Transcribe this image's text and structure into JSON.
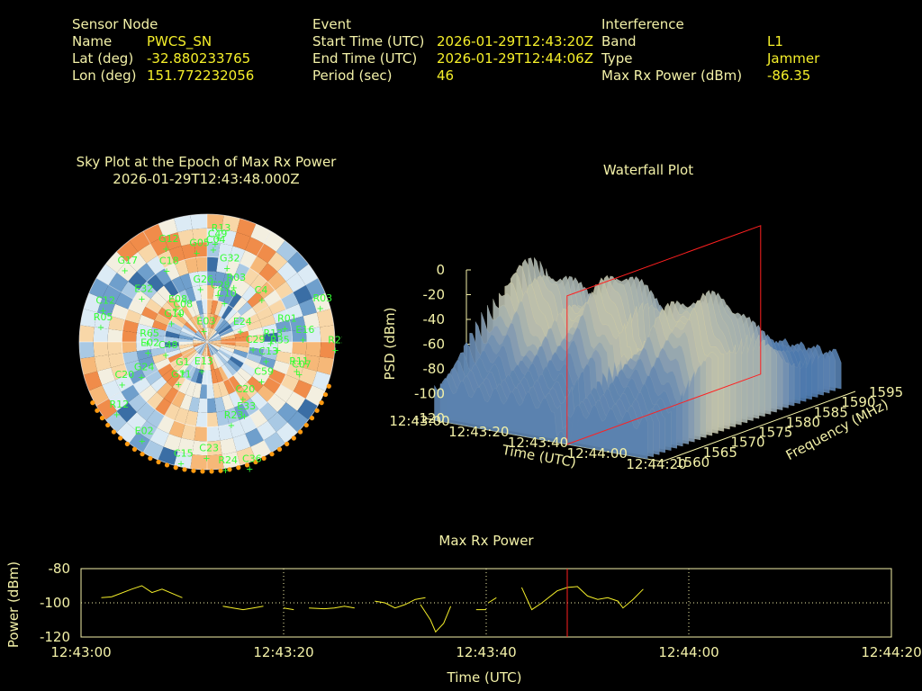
{
  "header": {
    "sensor": {
      "title": "Sensor Node",
      "name_label": "Name",
      "name": "PWCS_SN",
      "lat_label": "Lat (deg)",
      "lat": "-32.880233765",
      "lon_label": "Lon (deg)",
      "lon": "151.772232056"
    },
    "event": {
      "title": "Event",
      "start_label": "Start Time (UTC)",
      "start": "2026-01-29T12:43:20Z",
      "end_label": "End Time (UTC)",
      "end": "2026-01-29T12:44:06Z",
      "period_label": "Period (sec)",
      "period": "46"
    },
    "interference": {
      "title": "Interference",
      "band_label": "Band",
      "band": "L1",
      "type_label": "Type",
      "type": "Jammer",
      "power_label": "Max Rx Power (dBm)",
      "power": "-86.35"
    }
  },
  "colors": {
    "label": "#f3f1a8",
    "value": "#f5ef2a",
    "sat": "#33ff33",
    "marker": "#ff2020",
    "horizon": "#ff9a10"
  },
  "chart_data": [
    {
      "type": "scatter",
      "title": "Sky Plot at the Epoch of Max Rx Power",
      "subtitle": "2026-01-29T12:43:48.000Z",
      "satellites": [
        "R03",
        "R35",
        "G24",
        "R24",
        "G10",
        "C36",
        "C20",
        "C07",
        "C08",
        "C04",
        "G05",
        "C13",
        "E02",
        "R03",
        "G32",
        "R22",
        "R11",
        "C20",
        "G17",
        "E02",
        "C12",
        "C18",
        "R23",
        "C23",
        "C48",
        "R01",
        "E08",
        "G1",
        "E24",
        "E16",
        "C49",
        "R12",
        "E03",
        "C4",
        "C10",
        "C29",
        "C59",
        "G11",
        "E13",
        "R13",
        "R65",
        "R13",
        "E33",
        "R05",
        "C15",
        "G26",
        "C28",
        "E32",
        "G12"
      ]
    },
    {
      "type": "area",
      "title": "Waterfall Plot",
      "zlabel": "PSD (dBm)",
      "xlabel": "Time (UTC)",
      "ylabel": "Frequency (MHz)",
      "zticks": [
        "0",
        "-20",
        "-40",
        "-60",
        "-80",
        "-100",
        "-120"
      ],
      "xticks": [
        "12:43:00",
        "12:43:20",
        "12:43:40",
        "12:44:00",
        "12:44:20"
      ],
      "yticks": [
        "1560",
        "1565",
        "1570",
        "1575",
        "1580",
        "1585",
        "1590",
        "1595"
      ],
      "zlim": [
        -120,
        0
      ]
    },
    {
      "type": "line",
      "title": "Max Rx Power",
      "xlabel": "Time (UTC)",
      "ylabel": "Power (dBm)",
      "xticks": [
        "12:43:00",
        "12:43:20",
        "12:43:40",
        "12:44:00",
        "12:44:20"
      ],
      "yticks": [
        "-80",
        "-100",
        "-120"
      ],
      "ylim": [
        -120,
        -80
      ],
      "xlim_sec": [
        0,
        80
      ],
      "marker_sec": 48,
      "segments": [
        [
          [
            2,
            -97
          ],
          [
            3,
            -96.5
          ],
          [
            5,
            -92
          ],
          [
            6,
            -90
          ],
          [
            7,
            -94
          ],
          [
            8,
            -92
          ],
          [
            10,
            -97
          ]
        ],
        [
          [
            14,
            -102
          ],
          [
            15,
            -103
          ],
          [
            16,
            -104
          ],
          [
            17,
            -103
          ],
          [
            18,
            -102
          ]
        ],
        [
          [
            20,
            -103
          ],
          [
            21,
            -104
          ]
        ],
        [
          [
            22.5,
            -103
          ],
          [
            24,
            -103.5
          ],
          [
            25,
            -103
          ],
          [
            26,
            -102
          ],
          [
            27,
            -103
          ]
        ],
        [
          [
            29,
            -99
          ],
          [
            30,
            -100
          ],
          [
            31,
            -103
          ],
          [
            32,
            -101
          ],
          [
            33,
            -98
          ],
          [
            34,
            -97
          ]
        ],
        [
          [
            33.5,
            -101
          ],
          [
            34.5,
            -110
          ],
          [
            35,
            -117
          ],
          [
            35.8,
            -112
          ],
          [
            36.5,
            -102
          ]
        ],
        [
          [
            39,
            -104
          ],
          [
            40,
            -104
          ]
        ],
        [
          [
            40.2,
            -100
          ],
          [
            41,
            -97
          ]
        ],
        [
          [
            43.5,
            -91
          ],
          [
            44.5,
            -104
          ],
          [
            45.5,
            -100
          ],
          [
            47,
            -93
          ],
          [
            48,
            -91
          ],
          [
            49,
            -90.5
          ],
          [
            50,
            -96
          ],
          [
            51,
            -98
          ],
          [
            52,
            -97
          ],
          [
            53,
            -99
          ],
          [
            53.5,
            -103
          ],
          [
            54.5,
            -98
          ],
          [
            55.5,
            -92
          ]
        ]
      ]
    }
  ]
}
